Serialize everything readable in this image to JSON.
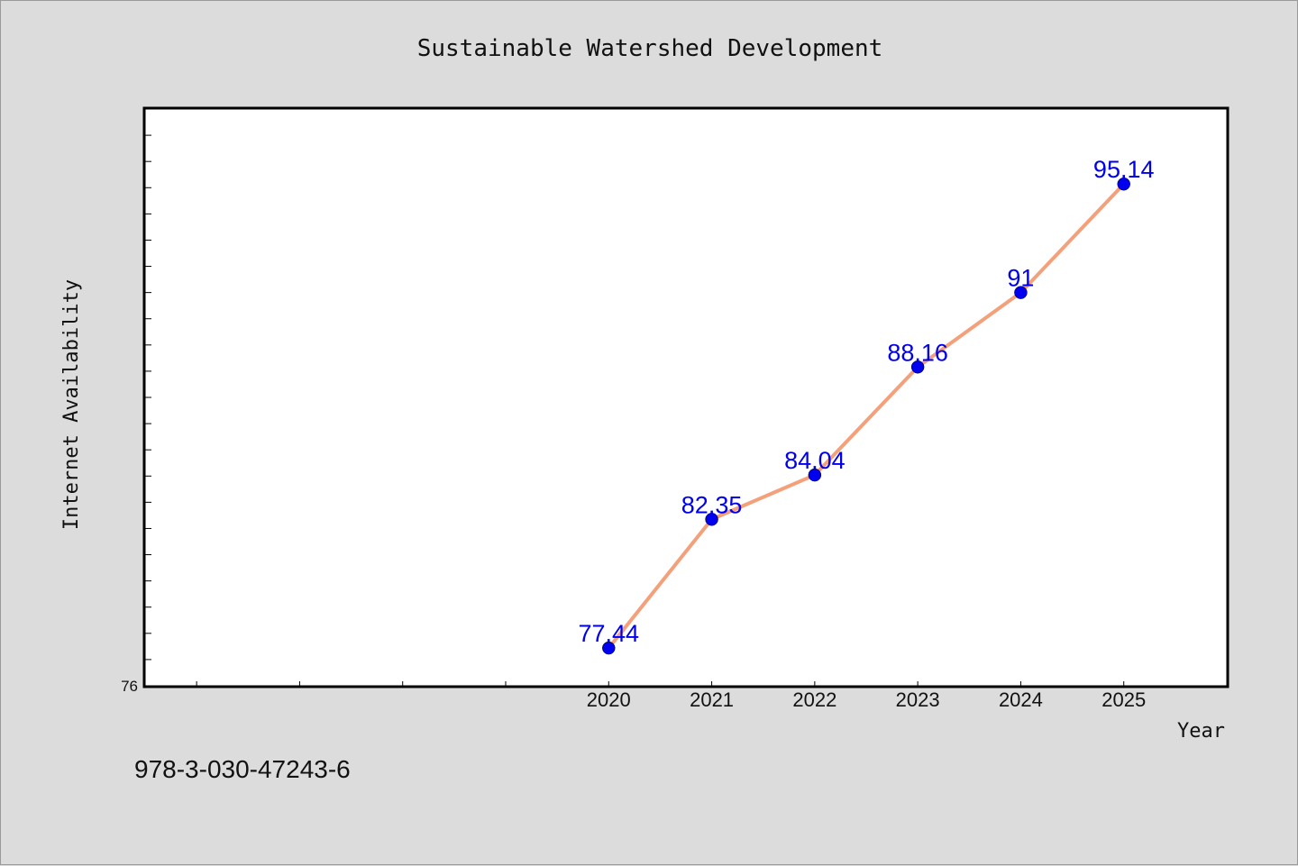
{
  "chart_data": {
    "type": "line",
    "title": "Sustainable Watershed Development",
    "xlabel": "Year",
    "ylabel": "Internet Availability",
    "x": [
      2020,
      2021,
      2022,
      2023,
      2024,
      2025
    ],
    "x_tick_labels": [
      "2020",
      "2021",
      "2022",
      "2023",
      "2024",
      "2025"
    ],
    "xlim": [
      2015.5,
      2026
    ],
    "series": [
      {
        "values": [
          77.44,
          82.35,
          84.04,
          88.16,
          91,
          95.14
        ],
        "data_labels": [
          "77.44",
          "82.35",
          "84.04",
          "88.16",
          "91",
          "95.14"
        ],
        "line_color": "#f4a07a",
        "marker_color": "#0000ee",
        "label_color": "#0000ee"
      }
    ],
    "ylim": [
      76,
      98
    ],
    "y_tick_labels": [
      {
        "value": 76,
        "label": "76"
      }
    ],
    "y_minor_step": 1,
    "grid": false,
    "legend": "none"
  },
  "footer": {
    "isbn": "978-3-030-47243-6"
  }
}
